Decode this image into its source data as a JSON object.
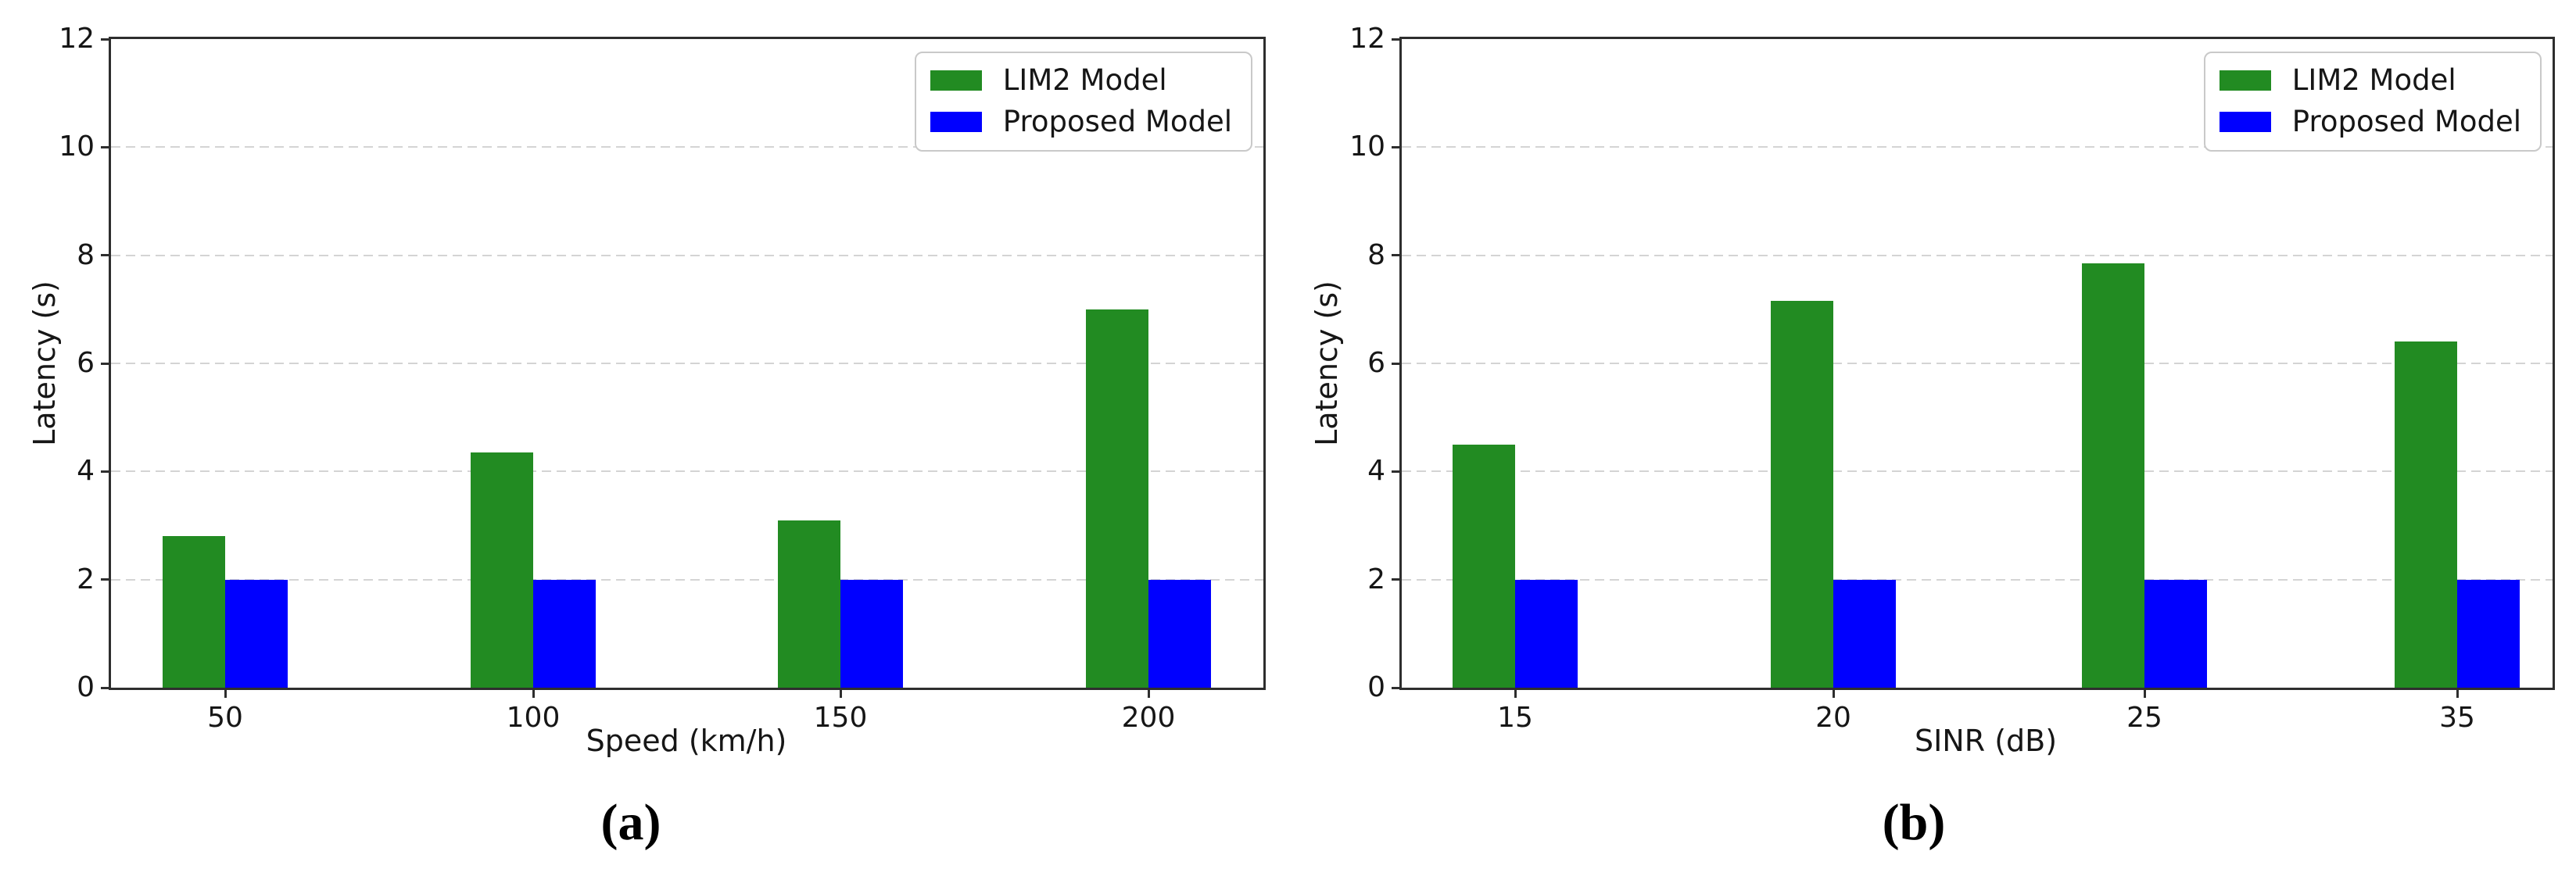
{
  "figure": {
    "background": "#ffffff",
    "ylabel": "Latency (s)"
  },
  "chart_data": [
    {
      "type": "bar",
      "caption": "(a)",
      "xlabel": "Speed (km/h)",
      "ylabel": "Latency (s)",
      "categories": [
        "50",
        "100",
        "150",
        "200"
      ],
      "series": [
        {
          "name": "LIM2 Model",
          "color": "#228B22",
          "values": [
            2.8,
            4.35,
            3.1,
            7.0
          ]
        },
        {
          "name": "Proposed Model",
          "color": "#0000FF",
          "values": [
            2.0,
            2.0,
            2.0,
            2.0
          ]
        }
      ],
      "ylim": [
        0,
        12
      ],
      "yticks": [
        0,
        2,
        4,
        6,
        8,
        10,
        12
      ],
      "grid": "horizontal-dashed",
      "legend_position": "top-right"
    },
    {
      "type": "bar",
      "caption": "(b)",
      "xlabel": "SINR (dB)",
      "ylabel": "Latency (s)",
      "categories": [
        "15",
        "20",
        "25",
        "35"
      ],
      "series": [
        {
          "name": "LIM2 Model",
          "color": "#228B22",
          "values": [
            4.5,
            7.15,
            7.85,
            6.4
          ]
        },
        {
          "name": "Proposed Model",
          "color": "#0000FF",
          "values": [
            2.0,
            2.0,
            2.0,
            2.0
          ]
        }
      ],
      "ylim": [
        0,
        12
      ],
      "yticks": [
        0,
        2,
        4,
        6,
        8,
        10,
        12
      ],
      "grid": "horizontal-dashed",
      "legend_position": "top-right"
    }
  ]
}
